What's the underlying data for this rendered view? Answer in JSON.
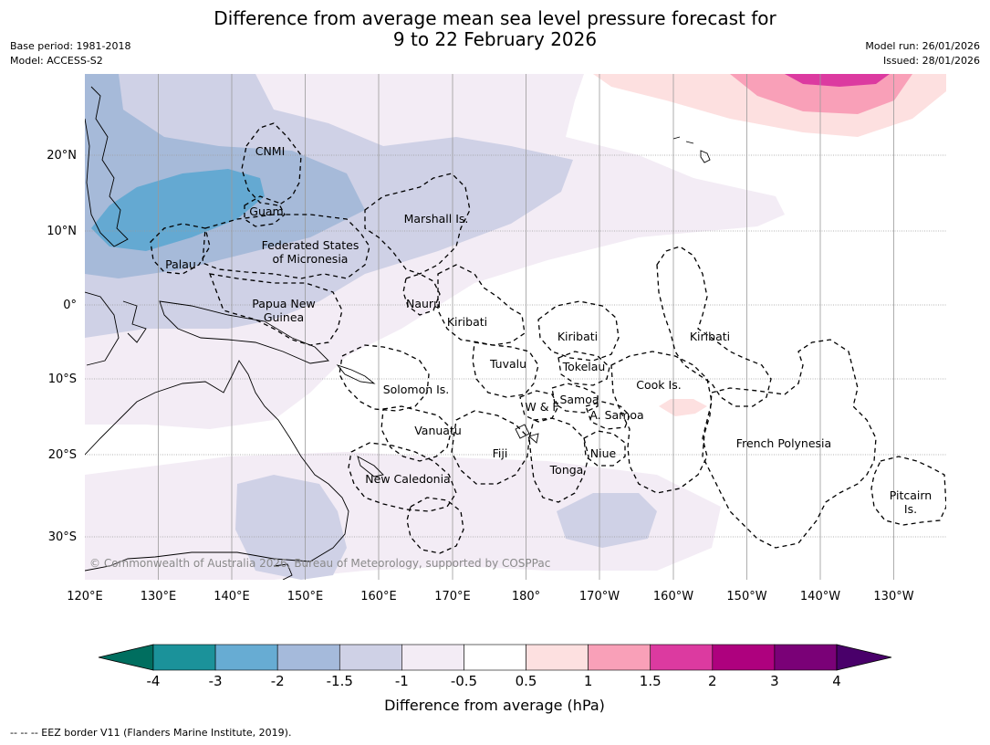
{
  "title": {
    "line1": "Difference from average mean sea level pressure forecast for",
    "line2": "9 to 22 February 2026"
  },
  "meta": {
    "base_period": "Base period: 1981-2018",
    "model": "Model: ACCESS-S2",
    "model_run": "Model run: 26/01/2026",
    "issued": "Issued: 28/01/2026"
  },
  "axes": {
    "lon_ticks": [
      "120°E",
      "130°E",
      "140°E",
      "150°E",
      "160°E",
      "170°E",
      "180°",
      "170°W",
      "160°W",
      "150°W",
      "140°W",
      "130°W"
    ],
    "lat_ticks": [
      "20°N",
      "10°N",
      "0°",
      "10°S",
      "20°S",
      "30°S"
    ]
  },
  "regions": {
    "cnmi": "CNMI",
    "guam": "Guam",
    "marshall": "Marshall Is.",
    "fsm_line1": "Federated States",
    "fsm_line2": "of Micronesia",
    "palau": "Palau",
    "png_line1": "Papua New",
    "png_line2": "Guinea",
    "nauru": "Nauru",
    "kiribati_w": "Kiribati",
    "kiribati_c": "Kiribati",
    "kiribati_e": "Kiribati",
    "tuvalu": "Tuvalu",
    "tokelau": "Tokelau",
    "solomon": "Solomon Is.",
    "cook": "Cook Is.",
    "samoa": "Samoa",
    "wallis": "W & F",
    "am_samoa": "A. Samoa",
    "vanuatu": "Vanuatu",
    "fiji": "Fiji",
    "niue": "Niue",
    "tonga": "Tonga",
    "new_caledonia": "New Caledonia",
    "french_polynesia": "French Polynesia",
    "pitcairn_line1": "Pitcairn",
    "pitcairn_line2": "Is."
  },
  "copyright": "© Commonwealth of Australia 2026, Bureau of Meteorology, supported by COSPPac",
  "colorbar": {
    "label": "Difference from average (hPa)",
    "ticks": [
      "-4",
      "-3",
      "-2",
      "-1.5",
      "-1",
      "-0.5",
      "0.5",
      "1",
      "1.5",
      "2",
      "3",
      "4"
    ],
    "colors": {
      "under": "#006e5f",
      "bins": [
        "#1b929a",
        "#67acd3",
        "#a5badb",
        "#cfd1e6",
        "#f3ecf5",
        "#ffffff",
        "#fde0e0",
        "#f9a0b8",
        "#dc3aa0",
        "#ae017e",
        "#7a0177"
      ],
      "over": "#49006a"
    }
  },
  "legend_note": "--  --  -- EEZ border V11 (Flanders Marine Institute, 2019)."
}
